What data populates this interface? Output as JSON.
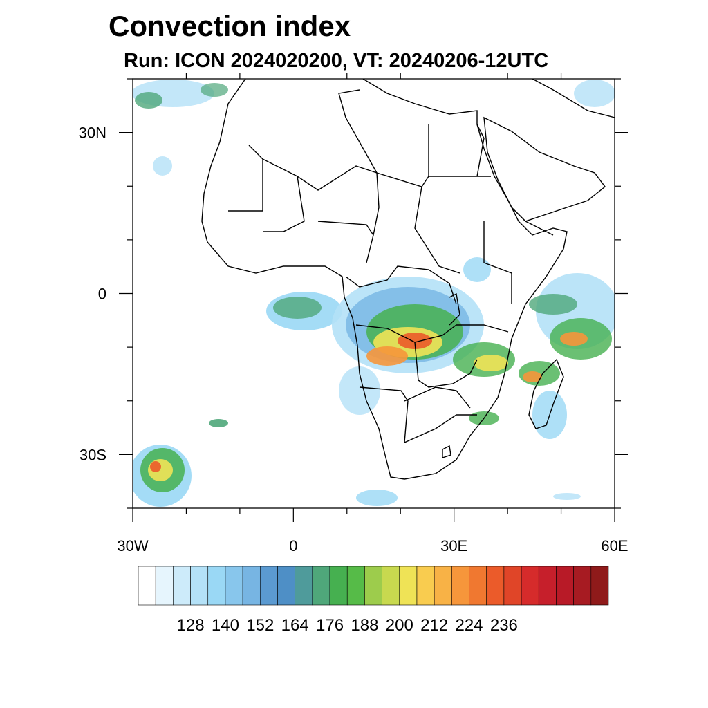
{
  "title": "Convection index",
  "subtitle": "Run: ICON 2024020200,  VT: 20240206-12UTC",
  "map": {
    "lon_range": [
      -30,
      60
    ],
    "lat_range": [
      -40,
      40
    ],
    "x_ticks": [
      {
        "value": -30,
        "label": "30W"
      },
      {
        "value": 0,
        "label": "0"
      },
      {
        "value": 30,
        "label": "30E"
      },
      {
        "value": 60,
        "label": "60E"
      }
    ],
    "y_ticks": [
      {
        "value": 30,
        "label": "30N"
      },
      {
        "value": 0,
        "label": "0"
      },
      {
        "value": -30,
        "label": "30S"
      }
    ]
  },
  "colorbar": {
    "colors": [
      "#ffffff",
      "#e6f5fd",
      "#cdebfa",
      "#b4e1f7",
      "#9ad8f5",
      "#88c6ec",
      "#77b5e3",
      "#5b9ad1",
      "#4e8fc6",
      "#4f9b9b",
      "#4fa77a",
      "#46b050",
      "#56bb48",
      "#9dcc4c",
      "#c8d94f",
      "#efe356",
      "#f9cc4f",
      "#f8b246",
      "#f6963b",
      "#f07830",
      "#eb5b2a",
      "#e04528",
      "#d62b2b",
      "#c61f2b",
      "#b81a27",
      "#a71b22",
      "#8f1a1a"
    ],
    "tick_labels": [
      "128",
      "140",
      "152",
      "164",
      "176",
      "188",
      "200",
      "212",
      "224",
      "236"
    ]
  }
}
